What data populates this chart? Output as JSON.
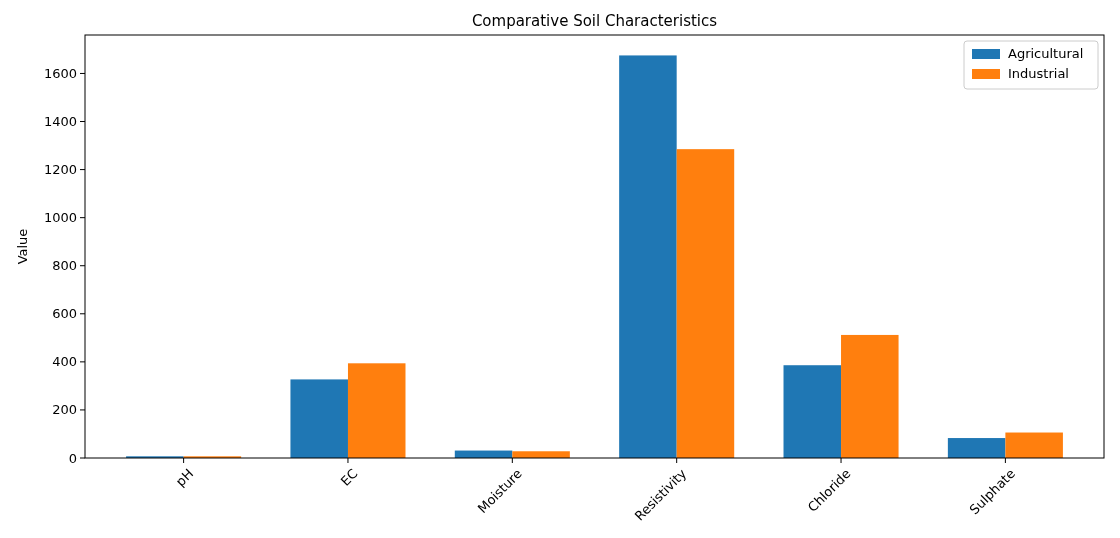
{
  "chart_data": {
    "type": "bar",
    "title": "Comparative Soil Characteristics",
    "ylabel": "Value",
    "categories": [
      "pH",
      "EC",
      "Moisture",
      "Resistivity",
      "Chloride",
      "Sulphate"
    ],
    "series": [
      {
        "name": "Agricultural",
        "color": "#1f77b4",
        "values": [
          7,
          327,
          31,
          1675,
          386,
          83
        ]
      },
      {
        "name": "Industrial",
        "color": "#ff7f0e",
        "values": [
          7,
          394,
          28,
          1285,
          512,
          106
        ]
      }
    ],
    "ylim": [
      0,
      1760
    ],
    "yticks": [
      0,
      200,
      400,
      600,
      800,
      1000,
      1200,
      1400,
      1600
    ],
    "grid": false,
    "legend": "top right"
  }
}
